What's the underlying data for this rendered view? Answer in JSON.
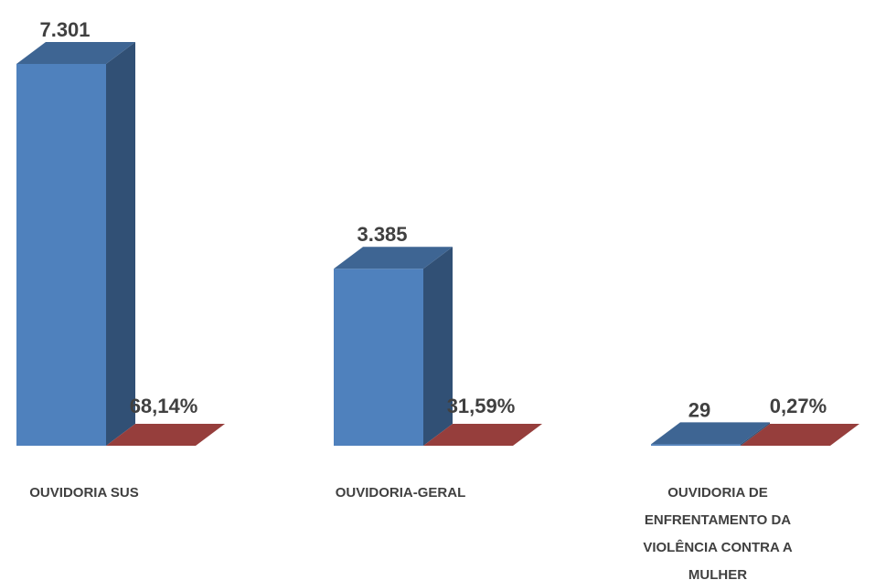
{
  "chart_data": {
    "type": "bar",
    "style": "3d-column",
    "categories": [
      [
        "OUVIDORIA SUS"
      ],
      [
        "OUVIDORIA-GERAL"
      ],
      [
        "OUVIDORIA DE",
        "ENFRENTAMENTO DA",
        "VIOLÊNCIA CONTRA A",
        "MULHER"
      ]
    ],
    "series": [
      {
        "color": "#4F81BD",
        "values": [
          7301,
          3385,
          29
        ],
        "labels": [
          "7.301",
          "3.385",
          "29"
        ]
      },
      {
        "color": "#C0504D",
        "values": [
          68.14,
          31.59,
          0.27
        ],
        "labels": [
          "68,14%",
          "31,59%",
          "0,27%"
        ]
      }
    ],
    "ylim": [
      0,
      7301
    ],
    "grid": false,
    "legend": "none"
  }
}
